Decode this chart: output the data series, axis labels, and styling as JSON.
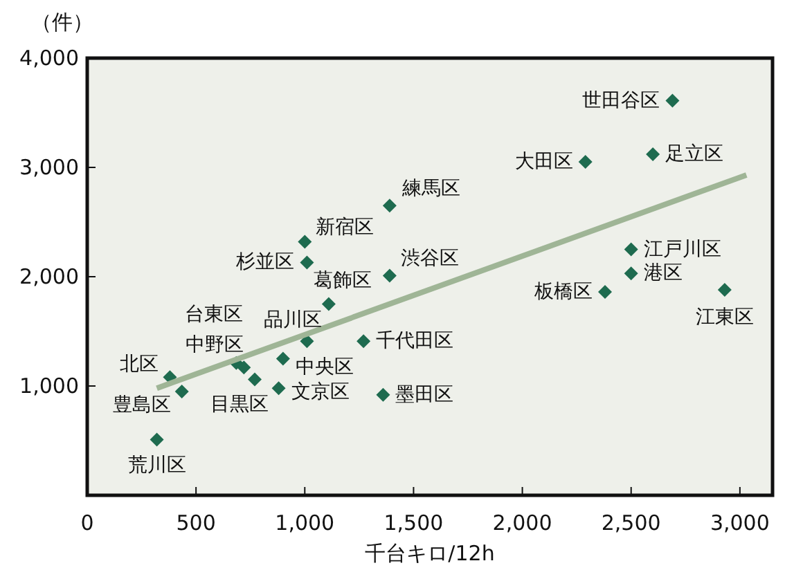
{
  "chart_data": {
    "type": "scatter",
    "xlabel": "千台キロ/12h",
    "ylabel": "（件）",
    "xlim": [
      0,
      3150
    ],
    "ylim": [
      0,
      4000
    ],
    "xticks": [
      0,
      {
        "value": 500,
        "label": "500"
      },
      {
        "value": 1000,
        "label": "1,000"
      },
      {
        "value": 1500,
        "label": "1,500"
      },
      {
        "value": 2000,
        "label": "2,000"
      },
      {
        "value": 2500,
        "label": "2,500"
      },
      {
        "value": 3000,
        "label": "3,000"
      }
    ],
    "yticks": [
      {
        "value": 1000,
        "label": "1,000"
      },
      {
        "value": 2000,
        "label": "2,000"
      },
      {
        "value": 3000,
        "label": "3,000"
      },
      {
        "value": 4000,
        "label": "4,000"
      }
    ],
    "grid": false,
    "series": [
      {
        "marker": "diamond",
        "color": "#1e6b4f",
        "x": [
          2690,
          2290,
          2600,
          1390,
          1000,
          2500,
          1010,
          1390,
          1110,
          2500,
          2380,
          2930,
          1010,
          1270,
          685,
          720,
          900,
          380,
          435,
          770,
          880,
          1360,
          320
        ],
        "values": [
          3610,
          3050,
          3120,
          2650,
          2320,
          2250,
          2130,
          2010,
          1750,
          2030,
          1860,
          1880,
          1410,
          1410,
          1210,
          1170,
          1250,
          1080,
          950,
          1060,
          980,
          920,
          510
        ]
      },
      {
        "type": "line",
        "color": "#9fb596",
        "x": [
          320,
          3030
        ],
        "values": [
          980,
          2930
        ]
      }
    ],
    "annotations": [
      {
        "text": "世田谷区",
        "x": 2690,
        "y": 3610
      },
      {
        "text": "大田区",
        "x": 2290,
        "y": 3050
      },
      {
        "text": "足立区",
        "x": 2600,
        "y": 3120
      },
      {
        "text": "練馬区",
        "x": 1390,
        "y": 2650
      },
      {
        "text": "新宿区",
        "x": 1000,
        "y": 2320
      },
      {
        "text": "江戸川区",
        "x": 2500,
        "y": 2250
      },
      {
        "text": "杉並区",
        "x": 1010,
        "y": 2130
      },
      {
        "text": "渋谷区",
        "x": 1390,
        "y": 2010
      },
      {
        "text": "葛飾区",
        "x": 1110,
        "y": 1750
      },
      {
        "text": "港区",
        "x": 2500,
        "y": 2030
      },
      {
        "text": "板橋区",
        "x": 2380,
        "y": 1860
      },
      {
        "text": "江東区",
        "x": 2930,
        "y": 1880
      },
      {
        "text": "品川区",
        "x": 1010,
        "y": 1410
      },
      {
        "text": "千代田区",
        "x": 1270,
        "y": 1410
      },
      {
        "text": "台東区",
        "x": 685,
        "y": 1210
      },
      {
        "text": "中野区",
        "x": 720,
        "y": 1170
      },
      {
        "text": "中央区",
        "x": 900,
        "y": 1250
      },
      {
        "text": "北区",
        "x": 380,
        "y": 1080
      },
      {
        "text": "豊島区",
        "x": 435,
        "y": 950
      },
      {
        "text": "目黒区",
        "x": 770,
        "y": 1060
      },
      {
        "text": "文京区",
        "x": 880,
        "y": 980
      },
      {
        "text": "墨田区",
        "x": 1360,
        "y": 920
      },
      {
        "text": "荒川区",
        "x": 320,
        "y": 510
      }
    ]
  }
}
